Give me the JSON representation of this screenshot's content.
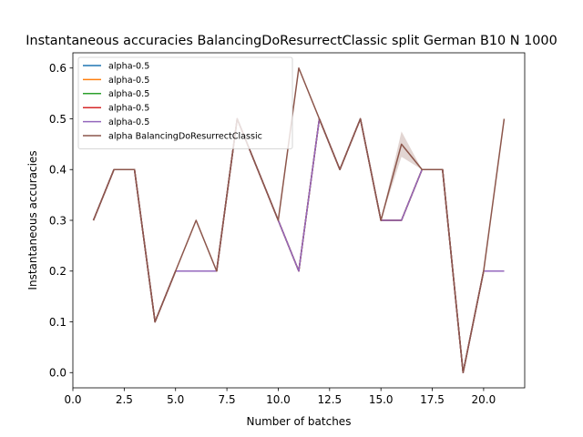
{
  "chart_data": {
    "type": "line",
    "title": "Instantaneous accuracies BalancingDoResurrectClassic split German B10 N 1000",
    "xlabel": "Number of batches",
    "ylabel": "Instantaneous accuracies",
    "xlim": [
      0,
      22
    ],
    "ylim": [
      -0.03,
      0.63
    ],
    "xticks": [
      0,
      2.5,
      5,
      7.5,
      10,
      12.5,
      15,
      17.5,
      20
    ],
    "xtick_labels": [
      "0.0",
      "2.5",
      "5.0",
      "7.5",
      "10.0",
      "12.5",
      "15.0",
      "17.5",
      "20.0"
    ],
    "yticks": [
      0.0,
      0.1,
      0.2,
      0.3,
      0.4,
      0.5,
      0.6
    ],
    "ytick_labels": [
      "0.0",
      "0.1",
      "0.2",
      "0.3",
      "0.4",
      "0.5",
      "0.6"
    ],
    "grid": false,
    "legend_position": "top-left",
    "x": [
      1,
      2,
      3,
      4,
      5,
      6,
      7,
      8,
      9,
      10,
      11,
      12,
      13,
      14,
      15,
      16,
      17,
      18,
      19,
      20,
      21
    ],
    "series": [
      {
        "name": "alpha-0.5",
        "color": "#1f77b4",
        "values": [
          0.3,
          0.4,
          0.4,
          0.1,
          0.2,
          0.2,
          0.2,
          0.5,
          0.4,
          0.3,
          0.2,
          0.5,
          0.4,
          0.5,
          0.3,
          0.3,
          0.4,
          0.4,
          0.0,
          0.2,
          0.2
        ]
      },
      {
        "name": "alpha-0.5",
        "color": "#ff7f0e",
        "values": [
          0.3,
          0.4,
          0.4,
          0.1,
          0.2,
          0.2,
          0.2,
          0.5,
          0.4,
          0.3,
          0.2,
          0.5,
          0.4,
          0.5,
          0.3,
          0.3,
          0.4,
          0.4,
          0.0,
          0.2,
          0.2
        ]
      },
      {
        "name": "alpha-0.5",
        "color": "#2ca02c",
        "values": [
          0.3,
          0.4,
          0.4,
          0.1,
          0.2,
          0.2,
          0.2,
          0.5,
          0.4,
          0.3,
          0.2,
          0.5,
          0.4,
          0.5,
          0.3,
          0.3,
          0.4,
          0.4,
          0.0,
          0.2,
          0.2
        ]
      },
      {
        "name": "alpha-0.5",
        "color": "#d62728",
        "values": [
          0.3,
          0.4,
          0.4,
          0.1,
          0.2,
          0.2,
          0.2,
          0.5,
          0.4,
          0.3,
          0.2,
          0.5,
          0.4,
          0.5,
          0.3,
          0.3,
          0.4,
          0.4,
          0.0,
          0.2,
          0.2
        ]
      },
      {
        "name": "alpha-0.5",
        "color": "#9467bd",
        "values": [
          0.3,
          0.4,
          0.4,
          0.1,
          0.2,
          0.2,
          0.2,
          0.5,
          0.4,
          0.3,
          0.2,
          0.5,
          0.4,
          0.5,
          0.3,
          0.3,
          0.4,
          0.4,
          0.0,
          0.2,
          0.2
        ]
      },
      {
        "name": "alpha BalancingDoResurrectClassic",
        "color": "#8c564b",
        "values": [
          0.3,
          0.4,
          0.4,
          0.1,
          0.2,
          0.3,
          0.2,
          0.5,
          0.4,
          0.3,
          0.6,
          0.5,
          0.4,
          0.5,
          0.3,
          0.45,
          0.4,
          0.4,
          0.0,
          0.2,
          0.5
        ],
        "band_low": [
          0.3,
          0.4,
          0.4,
          0.1,
          0.2,
          0.3,
          0.2,
          0.5,
          0.4,
          0.3,
          0.6,
          0.5,
          0.4,
          0.5,
          0.3,
          0.425,
          0.4,
          0.4,
          0.0,
          0.2,
          0.5
        ],
        "band_high": [
          0.3,
          0.4,
          0.4,
          0.1,
          0.2,
          0.3,
          0.2,
          0.5,
          0.4,
          0.3,
          0.6,
          0.5,
          0.4,
          0.5,
          0.3,
          0.475,
          0.4,
          0.4,
          0.0,
          0.2,
          0.5
        ]
      }
    ]
  }
}
